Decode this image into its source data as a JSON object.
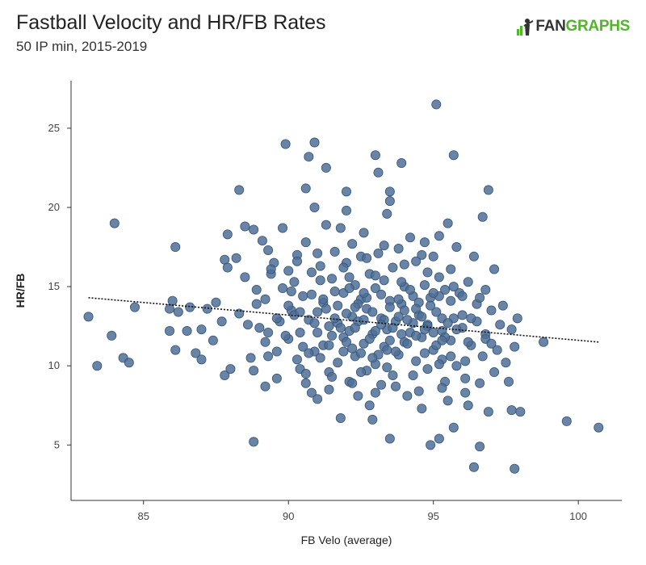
{
  "header": {
    "title": "Fastball Velocity and HR/FB Rates",
    "subtitle": "50 IP min, 2015-2019"
  },
  "logo": {
    "part1": "FAN",
    "part2": "GRAPHS",
    "accent": "#52b52c",
    "dark": "#333333"
  },
  "colors": {
    "point_fill": "#4f6e95",
    "point_stroke": "#33557e",
    "axis": "#333333",
    "trend": "#111111"
  },
  "chart_data": {
    "type": "scatter",
    "title": "Fastball Velocity and HR/FB Rates",
    "subtitle": "50 IP min, 2015-2019",
    "xlabel": "FB Velo (average)",
    "ylabel": "HR/FB",
    "xlim": [
      82.5,
      101.5
    ],
    "ylim": [
      1.5,
      28
    ],
    "xticks": [
      85,
      90,
      95,
      100
    ],
    "yticks": [
      5,
      10,
      15,
      20,
      25
    ],
    "grid": false,
    "trendline": {
      "x": [
        83.1,
        100.7
      ],
      "y": [
        14.3,
        11.5
      ],
      "style": "dotted"
    },
    "points": [
      [
        83.1,
        13.1
      ],
      [
        83.4,
        10.0
      ],
      [
        83.9,
        11.9
      ],
      [
        84.0,
        19.0
      ],
      [
        84.3,
        10.5
      ],
      [
        84.5,
        10.2
      ],
      [
        84.7,
        13.7
      ],
      [
        85.9,
        13.6
      ],
      [
        85.9,
        12.2
      ],
      [
        86.0,
        14.1
      ],
      [
        86.1,
        11.0
      ],
      [
        86.1,
        17.5
      ],
      [
        86.2,
        13.4
      ],
      [
        86.5,
        12.2
      ],
      [
        86.6,
        13.7
      ],
      [
        86.8,
        10.8
      ],
      [
        87.0,
        12.3
      ],
      [
        87.0,
        10.4
      ],
      [
        87.2,
        13.6
      ],
      [
        87.4,
        11.6
      ],
      [
        87.5,
        14.0
      ],
      [
        87.7,
        12.8
      ],
      [
        87.8,
        16.7
      ],
      [
        87.9,
        18.3
      ],
      [
        87.9,
        16.2
      ],
      [
        87.8,
        9.4
      ],
      [
        88.0,
        9.8
      ],
      [
        88.2,
        16.8
      ],
      [
        88.3,
        13.3
      ],
      [
        88.3,
        21.1
      ],
      [
        88.5,
        18.8
      ],
      [
        88.5,
        15.6
      ],
      [
        88.6,
        12.6
      ],
      [
        88.7,
        10.5
      ],
      [
        88.8,
        9.7
      ],
      [
        88.8,
        5.2
      ],
      [
        88.8,
        18.6
      ],
      [
        88.9,
        14.8
      ],
      [
        89.0,
        12.4
      ],
      [
        89.1,
        17.9
      ],
      [
        89.2,
        8.7
      ],
      [
        89.2,
        11.5
      ],
      [
        89.2,
        14.2
      ],
      [
        89.3,
        17.3
      ],
      [
        89.3,
        10.6
      ],
      [
        89.4,
        15.8
      ],
      [
        89.5,
        16.5
      ],
      [
        89.6,
        9.2
      ],
      [
        89.7,
        12.8
      ],
      [
        89.8,
        14.9
      ],
      [
        89.8,
        18.7
      ],
      [
        89.9,
        24.0
      ],
      [
        90.0,
        16.0
      ],
      [
        90.0,
        11.7
      ],
      [
        90.1,
        13.5
      ],
      [
        90.2,
        15.3
      ],
      [
        90.3,
        10.4
      ],
      [
        90.3,
        17.0
      ],
      [
        90.4,
        12.1
      ],
      [
        90.4,
        9.8
      ],
      [
        90.5,
        14.4
      ],
      [
        90.6,
        21.2
      ],
      [
        90.6,
        17.8
      ],
      [
        90.7,
        23.2
      ],
      [
        90.7,
        12.9
      ],
      [
        90.8,
        8.3
      ],
      [
        90.8,
        15.9
      ],
      [
        90.9,
        24.1
      ],
      [
        90.9,
        20.0
      ],
      [
        90.9,
        10.9
      ],
      [
        91.0,
        7.9
      ],
      [
        91.0,
        13.4
      ],
      [
        91.1,
        16.3
      ],
      [
        91.2,
        14.0
      ],
      [
        91.2,
        11.3
      ],
      [
        91.3,
        22.5
      ],
      [
        91.3,
        18.9
      ],
      [
        91.4,
        9.6
      ],
      [
        91.4,
        12.5
      ],
      [
        91.5,
        15.5
      ],
      [
        91.6,
        17.2
      ],
      [
        91.7,
        10.2
      ],
      [
        91.7,
        13.8
      ],
      [
        91.8,
        18.7
      ],
      [
        91.8,
        6.7
      ],
      [
        91.9,
        11.8
      ],
      [
        91.9,
        14.6
      ],
      [
        92.0,
        21.0
      ],
      [
        92.0,
        19.8
      ],
      [
        92.0,
        16.5
      ],
      [
        92.1,
        12.2
      ],
      [
        92.1,
        9.0
      ],
      [
        92.2,
        13.1
      ],
      [
        92.2,
        17.7
      ],
      [
        92.3,
        10.6
      ],
      [
        92.3,
        15.1
      ],
      [
        92.4,
        12.8
      ],
      [
        92.4,
        8.1
      ],
      [
        92.5,
        14.2
      ],
      [
        92.5,
        16.9
      ],
      [
        92.6,
        11.4
      ],
      [
        92.6,
        18.4
      ],
      [
        92.7,
        9.7
      ],
      [
        92.7,
        13.6
      ],
      [
        92.8,
        7.5
      ],
      [
        92.8,
        15.8
      ],
      [
        92.9,
        12.0
      ],
      [
        92.9,
        6.6
      ],
      [
        93.0,
        23.3
      ],
      [
        93.0,
        14.9
      ],
      [
        93.0,
        10.1
      ],
      [
        93.1,
        22.2
      ],
      [
        93.1,
        17.1
      ],
      [
        93.2,
        13.0
      ],
      [
        93.2,
        8.8
      ],
      [
        93.3,
        11.2
      ],
      [
        93.3,
        15.4
      ],
      [
        93.4,
        12.3
      ],
      [
        93.4,
        19.6
      ],
      [
        93.5,
        21.0
      ],
      [
        93.5,
        20.4
      ],
      [
        93.5,
        14.1
      ],
      [
        93.5,
        5.4
      ],
      [
        93.6,
        9.4
      ],
      [
        93.6,
        16.2
      ],
      [
        93.7,
        12.8
      ],
      [
        93.8,
        17.4
      ],
      [
        93.8,
        10.7
      ],
      [
        93.9,
        13.9
      ],
      [
        93.9,
        22.8
      ],
      [
        94.0,
        11.5
      ],
      [
        94.0,
        15.0
      ],
      [
        94.1,
        8.1
      ],
      [
        94.2,
        18.1
      ],
      [
        94.2,
        12.1
      ],
      [
        94.3,
        14.4
      ],
      [
        94.4,
        10.3
      ],
      [
        94.4,
        16.6
      ],
      [
        94.5,
        13.2
      ],
      [
        94.6,
        11.8
      ],
      [
        94.6,
        7.3
      ],
      [
        94.7,
        17.8
      ],
      [
        94.7,
        15.1
      ],
      [
        94.8,
        9.8
      ],
      [
        94.8,
        12.6
      ],
      [
        94.9,
        5.0
      ],
      [
        94.9,
        14.3
      ],
      [
        95.0,
        11.0
      ],
      [
        95.0,
        16.9
      ],
      [
        95.1,
        26.5
      ],
      [
        95.1,
        13.4
      ],
      [
        95.2,
        18.2
      ],
      [
        95.2,
        5.4
      ],
      [
        95.3,
        10.4
      ],
      [
        95.3,
        12.2
      ],
      [
        95.4,
        14.8
      ],
      [
        95.4,
        9.0
      ],
      [
        95.5,
        19.0
      ],
      [
        95.5,
        7.8
      ],
      [
        95.6,
        11.6
      ],
      [
        95.6,
        16.1
      ],
      [
        95.7,
        23.3
      ],
      [
        95.7,
        13.0
      ],
      [
        95.7,
        6.1
      ],
      [
        95.8,
        17.5
      ],
      [
        95.8,
        10.0
      ],
      [
        95.9,
        14.6
      ],
      [
        96.0,
        12.4
      ],
      [
        96.1,
        9.2
      ],
      [
        96.2,
        15.3
      ],
      [
        96.2,
        7.5
      ],
      [
        96.3,
        11.3
      ],
      [
        96.4,
        16.9
      ],
      [
        96.4,
        3.6
      ],
      [
        96.5,
        13.9
      ],
      [
        96.6,
        8.9
      ],
      [
        96.6,
        4.9
      ],
      [
        96.7,
        19.4
      ],
      [
        96.7,
        10.6
      ],
      [
        96.8,
        14.8
      ],
      [
        96.8,
        12.0
      ],
      [
        96.9,
        21.1
      ],
      [
        96.9,
        7.1
      ],
      [
        97.0,
        13.5
      ],
      [
        97.1,
        9.6
      ],
      [
        97.1,
        16.1
      ],
      [
        97.2,
        11.0
      ],
      [
        97.3,
        12.6
      ],
      [
        97.4,
        13.8
      ],
      [
        97.5,
        10.2
      ],
      [
        97.6,
        9.0
      ],
      [
        97.7,
        12.3
      ],
      [
        97.7,
        7.2
      ],
      [
        97.8,
        3.5
      ],
      [
        97.8,
        11.2
      ],
      [
        97.9,
        13.0
      ],
      [
        98.0,
        7.1
      ],
      [
        98.8,
        11.5
      ],
      [
        99.6,
        6.5
      ],
      [
        100.7,
        6.1
      ],
      [
        90.2,
        13.2
      ],
      [
        90.5,
        11.2
      ],
      [
        90.8,
        14.5
      ],
      [
        91.0,
        12.1
      ],
      [
        91.1,
        10.5
      ],
      [
        91.3,
        13.6
      ],
      [
        91.5,
        11.9
      ],
      [
        91.6,
        14.7
      ],
      [
        91.7,
        12.7
      ],
      [
        91.9,
        10.9
      ],
      [
        92.0,
        13.3
      ],
      [
        92.1,
        14.9
      ],
      [
        92.2,
        11.1
      ],
      [
        92.3,
        12.4
      ],
      [
        92.4,
        13.9
      ],
      [
        92.5,
        10.8
      ],
      [
        92.6,
        12.9
      ],
      [
        92.7,
        14.3
      ],
      [
        92.8,
        11.7
      ],
      [
        92.9,
        13.4
      ],
      [
        93.0,
        12.2
      ],
      [
        93.1,
        10.7
      ],
      [
        93.2,
        14.5
      ],
      [
        93.3,
        12.9
      ],
      [
        93.4,
        11.0
      ],
      [
        93.5,
        13.7
      ],
      [
        93.6,
        12.4
      ],
      [
        93.7,
        10.9
      ],
      [
        93.8,
        14.2
      ],
      [
        93.9,
        12.0
      ],
      [
        94.0,
        13.5
      ],
      [
        94.1,
        11.4
      ],
      [
        94.2,
        14.8
      ],
      [
        94.3,
        12.7
      ],
      [
        94.4,
        11.9
      ],
      [
        94.5,
        14.0
      ],
      [
        94.6,
        13.1
      ],
      [
        94.7,
        10.8
      ],
      [
        94.8,
        12.5
      ],
      [
        94.9,
        13.8
      ],
      [
        95.0,
        12.1
      ],
      [
        95.1,
        11.3
      ],
      [
        95.2,
        14.4
      ],
      [
        95.3,
        13.0
      ],
      [
        95.4,
        11.8
      ],
      [
        95.5,
        12.7
      ],
      [
        95.6,
        14.1
      ],
      [
        95.8,
        12.3
      ],
      [
        96.0,
        13.2
      ],
      [
        96.2,
        11.5
      ],
      [
        96.5,
        12.8
      ],
      [
        96.8,
        11.7
      ],
      [
        89.6,
        13.0
      ],
      [
        89.9,
        11.9
      ],
      [
        90.1,
        14.7
      ],
      [
        90.4,
        13.4
      ],
      [
        90.7,
        10.8
      ],
      [
        90.9,
        12.7
      ],
      [
        91.2,
        14.2
      ],
      [
        91.4,
        11.3
      ],
      [
        91.6,
        13.0
      ],
      [
        91.8,
        12.4
      ],
      [
        92.0,
        11.5
      ],
      [
        92.3,
        13.7
      ],
      [
        92.6,
        14.6
      ],
      [
        92.9,
        10.5
      ],
      [
        93.2,
        12.6
      ],
      [
        93.5,
        11.6
      ],
      [
        93.8,
        13.1
      ],
      [
        94.1,
        12.9
      ],
      [
        94.4,
        13.6
      ],
      [
        94.7,
        12.3
      ],
      [
        95.0,
        14.6
      ],
      [
        95.3,
        11.6
      ],
      [
        95.6,
        10.6
      ],
      [
        96.0,
        14.4
      ],
      [
        96.3,
        13.0
      ],
      [
        89.3,
        12.1
      ],
      [
        89.6,
        10.9
      ],
      [
        90.0,
        13.8
      ],
      [
        90.6,
        9.5
      ],
      [
        91.1,
        15.4
      ],
      [
        91.5,
        9.3
      ],
      [
        92.1,
        15.6
      ],
      [
        92.5,
        9.6
      ],
      [
        93.0,
        15.7
      ],
      [
        93.4,
        9.9
      ],
      [
        93.9,
        15.3
      ],
      [
        94.3,
        9.4
      ],
      [
        94.8,
        15.9
      ],
      [
        95.2,
        10.1
      ],
      [
        95.7,
        15.0
      ],
      [
        96.1,
        10.3
      ],
      [
        96.6,
        14.3
      ],
      [
        97.0,
        11.4
      ],
      [
        88.9,
        13.9
      ],
      [
        89.4,
        16.1
      ],
      [
        90.3,
        16.6
      ],
      [
        91.0,
        17.1
      ],
      [
        91.9,
        16.2
      ],
      [
        92.7,
        16.8
      ],
      [
        93.3,
        17.6
      ],
      [
        94.0,
        16.4
      ],
      [
        94.6,
        17.0
      ],
      [
        95.2,
        15.6
      ],
      [
        90.6,
        8.9
      ],
      [
        91.4,
        8.5
      ],
      [
        92.2,
        8.9
      ],
      [
        93.0,
        8.3
      ],
      [
        93.7,
        8.7
      ],
      [
        94.5,
        8.4
      ],
      [
        95.3,
        8.6
      ],
      [
        96.1,
        8.3
      ]
    ]
  }
}
